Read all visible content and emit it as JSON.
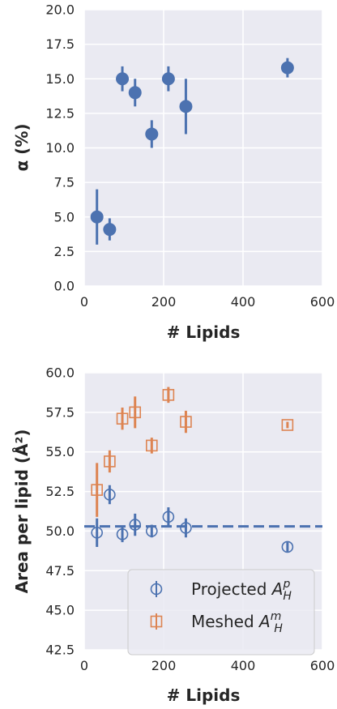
{
  "chart_data": [
    {
      "type": "scatter",
      "xlabel": "# Lipids",
      "ylabel": "α (%)",
      "xlim": [
        0,
        600
      ],
      "ylim": [
        0,
        20
      ],
      "xticks": [
        "0",
        "200",
        "400",
        "600"
      ],
      "yticks": [
        "0.0",
        "2.5",
        "5.0",
        "7.5",
        "10.0",
        "12.5",
        "15.0",
        "17.5",
        "20.0"
      ],
      "grid": true,
      "series": [
        {
          "color": "#4c72b0",
          "marker": "filled-circle",
          "points": [
            {
              "x": 32,
              "y": 5.0,
              "ylo": 3.0,
              "yhi": 7.0
            },
            {
              "x": 64,
              "y": 4.1,
              "ylo": 3.3,
              "yhi": 4.9
            },
            {
              "x": 96,
              "y": 15.0,
              "ylo": 14.1,
              "yhi": 15.9
            },
            {
              "x": 128,
              "y": 14.0,
              "ylo": 13.0,
              "yhi": 15.0
            },
            {
              "x": 170,
              "y": 11.0,
              "ylo": 10.0,
              "yhi": 12.0
            },
            {
              "x": 212,
              "y": 15.0,
              "ylo": 14.1,
              "yhi": 15.9
            },
            {
              "x": 256,
              "y": 13.0,
              "ylo": 11.0,
              "yhi": 15.0
            },
            {
              "x": 512,
              "y": 15.8,
              "ylo": 15.1,
              "yhi": 16.5
            }
          ]
        }
      ]
    },
    {
      "type": "scatter",
      "xlabel": "# Lipids",
      "ylabel": "Area per lipid (Å²)",
      "xlim": [
        0,
        600
      ],
      "ylim": [
        42.5,
        60.0
      ],
      "xticks": [
        "0",
        "200",
        "400",
        "600"
      ],
      "yticks": [
        "42.5",
        "45.0",
        "47.5",
        "50.0",
        "52.5",
        "55.0",
        "57.5",
        "60.0"
      ],
      "grid": true,
      "legend_position": "bottom-right",
      "hline": {
        "y": 50.3,
        "color": "#4c72b0",
        "style": "dashed"
      },
      "series": [
        {
          "name": "Projected",
          "name_math": {
            "base": "A",
            "sup": "p",
            "sub": "H"
          },
          "color": "#4c72b0",
          "marker": "open-circle",
          "points": [
            {
              "x": 32,
              "y": 49.9,
              "ylo": 49.0,
              "yhi": 50.8
            },
            {
              "x": 64,
              "y": 52.3,
              "ylo": 51.7,
              "yhi": 52.9
            },
            {
              "x": 96,
              "y": 49.8,
              "ylo": 49.3,
              "yhi": 50.3
            },
            {
              "x": 128,
              "y": 50.4,
              "ylo": 49.7,
              "yhi": 51.1
            },
            {
              "x": 170,
              "y": 50.0,
              "ylo": 49.6,
              "yhi": 50.4
            },
            {
              "x": 212,
              "y": 50.9,
              "ylo": 50.3,
              "yhi": 51.5
            },
            {
              "x": 256,
              "y": 50.2,
              "ylo": 49.6,
              "yhi": 50.8
            },
            {
              "x": 512,
              "y": 49.0,
              "ylo": 48.7,
              "yhi": 49.3
            }
          ]
        },
        {
          "name": "Meshed",
          "name_math": {
            "base": "A",
            "sup": "m",
            "sub": "H"
          },
          "color": "#dd8452",
          "marker": "open-square",
          "points": [
            {
              "x": 32,
              "y": 52.6,
              "ylo": 50.9,
              "yhi": 54.3
            },
            {
              "x": 64,
              "y": 54.4,
              "ylo": 53.7,
              "yhi": 55.1
            },
            {
              "x": 96,
              "y": 57.1,
              "ylo": 56.4,
              "yhi": 57.8
            },
            {
              "x": 128,
              "y": 57.5,
              "ylo": 56.5,
              "yhi": 58.5
            },
            {
              "x": 170,
              "y": 55.4,
              "ylo": 54.9,
              "yhi": 55.9
            },
            {
              "x": 212,
              "y": 58.6,
              "ylo": 58.1,
              "yhi": 59.1
            },
            {
              "x": 256,
              "y": 56.9,
              "ylo": 56.2,
              "yhi": 57.6
            },
            {
              "x": 512,
              "y": 56.7,
              "ylo": 56.5,
              "yhi": 56.9
            }
          ]
        }
      ]
    }
  ]
}
